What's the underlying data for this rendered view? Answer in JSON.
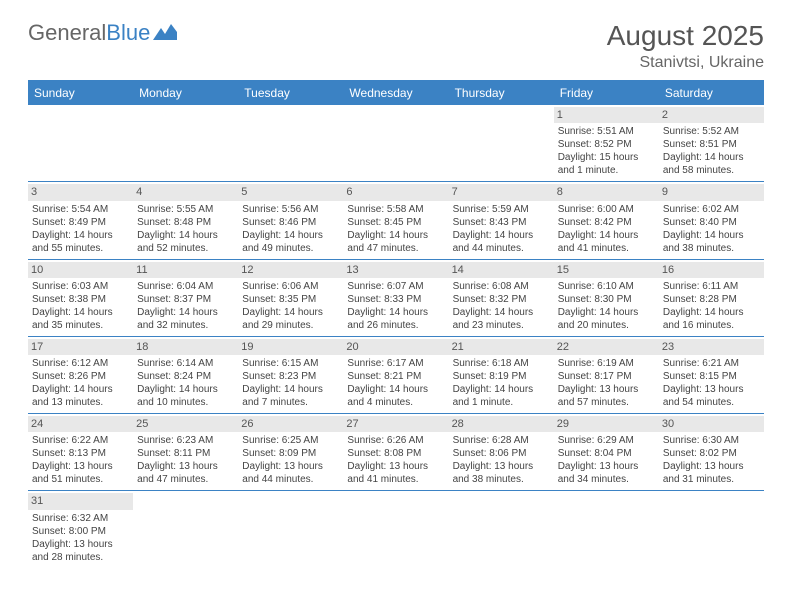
{
  "logo": {
    "left": "General",
    "right": "Blue"
  },
  "title": "August 2025",
  "location": "Stanivtsi, Ukraine",
  "colors": {
    "brand_blue": "#3b82c4",
    "header_bg": "#3b82c4",
    "header_text": "#ffffff",
    "day_num_bg": "#e8e8e8",
    "text": "#444444",
    "title_text": "#555555"
  },
  "weekdays": [
    "Sunday",
    "Monday",
    "Tuesday",
    "Wednesday",
    "Thursday",
    "Friday",
    "Saturday"
  ],
  "weeks": [
    [
      {
        "n": "",
        "sr": "",
        "ss": "",
        "dl": ""
      },
      {
        "n": "",
        "sr": "",
        "ss": "",
        "dl": ""
      },
      {
        "n": "",
        "sr": "",
        "ss": "",
        "dl": ""
      },
      {
        "n": "",
        "sr": "",
        "ss": "",
        "dl": ""
      },
      {
        "n": "",
        "sr": "",
        "ss": "",
        "dl": ""
      },
      {
        "n": "1",
        "sr": "Sunrise: 5:51 AM",
        "ss": "Sunset: 8:52 PM",
        "dl": "Daylight: 15 hours and 1 minute."
      },
      {
        "n": "2",
        "sr": "Sunrise: 5:52 AM",
        "ss": "Sunset: 8:51 PM",
        "dl": "Daylight: 14 hours and 58 minutes."
      }
    ],
    [
      {
        "n": "3",
        "sr": "Sunrise: 5:54 AM",
        "ss": "Sunset: 8:49 PM",
        "dl": "Daylight: 14 hours and 55 minutes."
      },
      {
        "n": "4",
        "sr": "Sunrise: 5:55 AM",
        "ss": "Sunset: 8:48 PM",
        "dl": "Daylight: 14 hours and 52 minutes."
      },
      {
        "n": "5",
        "sr": "Sunrise: 5:56 AM",
        "ss": "Sunset: 8:46 PM",
        "dl": "Daylight: 14 hours and 49 minutes."
      },
      {
        "n": "6",
        "sr": "Sunrise: 5:58 AM",
        "ss": "Sunset: 8:45 PM",
        "dl": "Daylight: 14 hours and 47 minutes."
      },
      {
        "n": "7",
        "sr": "Sunrise: 5:59 AM",
        "ss": "Sunset: 8:43 PM",
        "dl": "Daylight: 14 hours and 44 minutes."
      },
      {
        "n": "8",
        "sr": "Sunrise: 6:00 AM",
        "ss": "Sunset: 8:42 PM",
        "dl": "Daylight: 14 hours and 41 minutes."
      },
      {
        "n": "9",
        "sr": "Sunrise: 6:02 AM",
        "ss": "Sunset: 8:40 PM",
        "dl": "Daylight: 14 hours and 38 minutes."
      }
    ],
    [
      {
        "n": "10",
        "sr": "Sunrise: 6:03 AM",
        "ss": "Sunset: 8:38 PM",
        "dl": "Daylight: 14 hours and 35 minutes."
      },
      {
        "n": "11",
        "sr": "Sunrise: 6:04 AM",
        "ss": "Sunset: 8:37 PM",
        "dl": "Daylight: 14 hours and 32 minutes."
      },
      {
        "n": "12",
        "sr": "Sunrise: 6:06 AM",
        "ss": "Sunset: 8:35 PM",
        "dl": "Daylight: 14 hours and 29 minutes."
      },
      {
        "n": "13",
        "sr": "Sunrise: 6:07 AM",
        "ss": "Sunset: 8:33 PM",
        "dl": "Daylight: 14 hours and 26 minutes."
      },
      {
        "n": "14",
        "sr": "Sunrise: 6:08 AM",
        "ss": "Sunset: 8:32 PM",
        "dl": "Daylight: 14 hours and 23 minutes."
      },
      {
        "n": "15",
        "sr": "Sunrise: 6:10 AM",
        "ss": "Sunset: 8:30 PM",
        "dl": "Daylight: 14 hours and 20 minutes."
      },
      {
        "n": "16",
        "sr": "Sunrise: 6:11 AM",
        "ss": "Sunset: 8:28 PM",
        "dl": "Daylight: 14 hours and 16 minutes."
      }
    ],
    [
      {
        "n": "17",
        "sr": "Sunrise: 6:12 AM",
        "ss": "Sunset: 8:26 PM",
        "dl": "Daylight: 14 hours and 13 minutes."
      },
      {
        "n": "18",
        "sr": "Sunrise: 6:14 AM",
        "ss": "Sunset: 8:24 PM",
        "dl": "Daylight: 14 hours and 10 minutes."
      },
      {
        "n": "19",
        "sr": "Sunrise: 6:15 AM",
        "ss": "Sunset: 8:23 PM",
        "dl": "Daylight: 14 hours and 7 minutes."
      },
      {
        "n": "20",
        "sr": "Sunrise: 6:17 AM",
        "ss": "Sunset: 8:21 PM",
        "dl": "Daylight: 14 hours and 4 minutes."
      },
      {
        "n": "21",
        "sr": "Sunrise: 6:18 AM",
        "ss": "Sunset: 8:19 PM",
        "dl": "Daylight: 14 hours and 1 minute."
      },
      {
        "n": "22",
        "sr": "Sunrise: 6:19 AM",
        "ss": "Sunset: 8:17 PM",
        "dl": "Daylight: 13 hours and 57 minutes."
      },
      {
        "n": "23",
        "sr": "Sunrise: 6:21 AM",
        "ss": "Sunset: 8:15 PM",
        "dl": "Daylight: 13 hours and 54 minutes."
      }
    ],
    [
      {
        "n": "24",
        "sr": "Sunrise: 6:22 AM",
        "ss": "Sunset: 8:13 PM",
        "dl": "Daylight: 13 hours and 51 minutes."
      },
      {
        "n": "25",
        "sr": "Sunrise: 6:23 AM",
        "ss": "Sunset: 8:11 PM",
        "dl": "Daylight: 13 hours and 47 minutes."
      },
      {
        "n": "26",
        "sr": "Sunrise: 6:25 AM",
        "ss": "Sunset: 8:09 PM",
        "dl": "Daylight: 13 hours and 44 minutes."
      },
      {
        "n": "27",
        "sr": "Sunrise: 6:26 AM",
        "ss": "Sunset: 8:08 PM",
        "dl": "Daylight: 13 hours and 41 minutes."
      },
      {
        "n": "28",
        "sr": "Sunrise: 6:28 AM",
        "ss": "Sunset: 8:06 PM",
        "dl": "Daylight: 13 hours and 38 minutes."
      },
      {
        "n": "29",
        "sr": "Sunrise: 6:29 AM",
        "ss": "Sunset: 8:04 PM",
        "dl": "Daylight: 13 hours and 34 minutes."
      },
      {
        "n": "30",
        "sr": "Sunrise: 6:30 AM",
        "ss": "Sunset: 8:02 PM",
        "dl": "Daylight: 13 hours and 31 minutes."
      }
    ],
    [
      {
        "n": "31",
        "sr": "Sunrise: 6:32 AM",
        "ss": "Sunset: 8:00 PM",
        "dl": "Daylight: 13 hours and 28 minutes."
      },
      {
        "n": "",
        "sr": "",
        "ss": "",
        "dl": ""
      },
      {
        "n": "",
        "sr": "",
        "ss": "",
        "dl": ""
      },
      {
        "n": "",
        "sr": "",
        "ss": "",
        "dl": ""
      },
      {
        "n": "",
        "sr": "",
        "ss": "",
        "dl": ""
      },
      {
        "n": "",
        "sr": "",
        "ss": "",
        "dl": ""
      },
      {
        "n": "",
        "sr": "",
        "ss": "",
        "dl": ""
      }
    ]
  ]
}
